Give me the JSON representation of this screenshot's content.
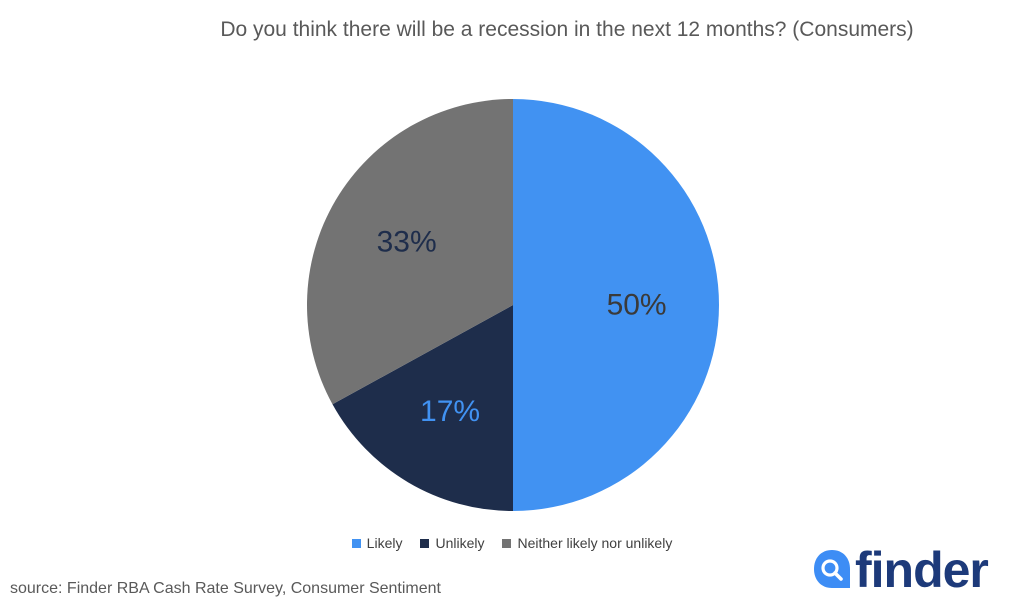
{
  "chart_data": {
    "type": "pie",
    "title": "Do you think there will be a recession in the next 12 months? (Consumers)",
    "slices": [
      {
        "label": "Likely",
        "value": 50,
        "display": "50%",
        "color": "#4192f2",
        "label_color": "#3a3a3a"
      },
      {
        "label": "Unlikely",
        "value": 17,
        "display": "17%",
        "color": "#1e2d4b",
        "label_color": "#4192f2"
      },
      {
        "label": "Neither likely nor unlikely",
        "value": 33,
        "display": "33%",
        "color": "#737373",
        "label_color": "#1e2d4b"
      }
    ],
    "legend_position": "bottom"
  },
  "source": "source: Finder RBA Cash Rate Survey, Consumer Sentiment",
  "logo": {
    "text": "finder",
    "icon": "search-icon"
  }
}
